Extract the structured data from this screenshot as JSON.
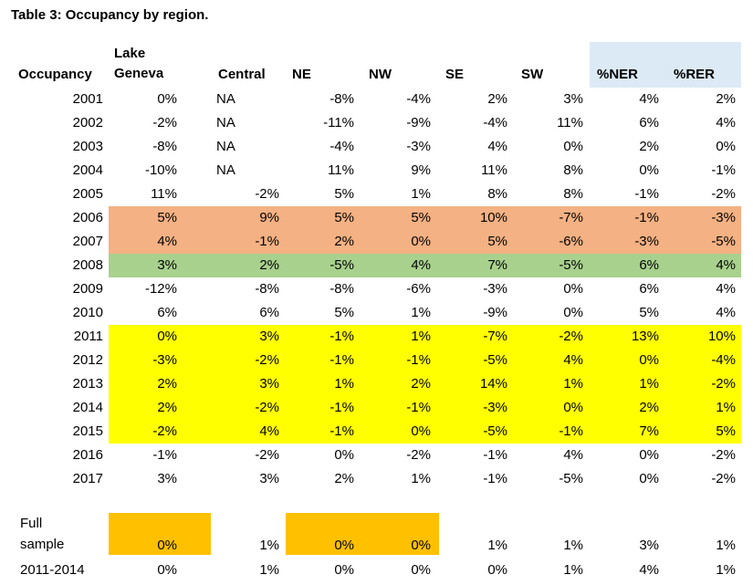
{
  "title": "Table 3: Occupancy by region.",
  "header": {
    "occupancy": "Occupancy",
    "lake_geneva_line1": "Lake",
    "lake_geneva_line2": "Geneva",
    "central": "Central",
    "ne": "NE",
    "nw": "NW",
    "se": "SE",
    "sw": "SW",
    "ner": "%NER",
    "rer": "%RER"
  },
  "colors": {
    "header_highlight": "#dceaf6",
    "salmon": "#f4b183",
    "green": "#a9d18e",
    "yellow": "#ffff00",
    "orange": "#ffc000"
  },
  "rows": [
    {
      "year": "2001",
      "values": [
        "0%",
        "NA",
        "-8%",
        "-4%",
        "2%",
        "3%",
        "4%",
        "2%"
      ],
      "highlight": ""
    },
    {
      "year": "2002",
      "values": [
        "-2%",
        "NA",
        "-11%",
        "-9%",
        "-4%",
        "11%",
        "6%",
        "4%"
      ],
      "highlight": ""
    },
    {
      "year": "2003",
      "values": [
        "-8%",
        "NA",
        "-4%",
        "-3%",
        "4%",
        "0%",
        "2%",
        "0%"
      ],
      "highlight": ""
    },
    {
      "year": "2004",
      "values": [
        "-10%",
        "NA",
        "11%",
        "9%",
        "11%",
        "8%",
        "0%",
        "-1%"
      ],
      "highlight": ""
    },
    {
      "year": "2005",
      "values": [
        "11%",
        "-2%",
        "5%",
        "1%",
        "8%",
        "8%",
        "-1%",
        "-2%"
      ],
      "highlight": ""
    },
    {
      "year": "2006",
      "values": [
        "5%",
        "9%",
        "5%",
        "5%",
        "10%",
        "-7%",
        "-1%",
        "-3%"
      ],
      "highlight": "salmon"
    },
    {
      "year": "2007",
      "values": [
        "4%",
        "-1%",
        "2%",
        "0%",
        "5%",
        "-6%",
        "-3%",
        "-5%"
      ],
      "highlight": "salmon"
    },
    {
      "year": "2008",
      "values": [
        "3%",
        "2%",
        "-5%",
        "4%",
        "7%",
        "-5%",
        "6%",
        "4%"
      ],
      "highlight": "green"
    },
    {
      "year": "2009",
      "values": [
        "-12%",
        "-8%",
        "-8%",
        "-6%",
        "-3%",
        "0%",
        "6%",
        "4%"
      ],
      "highlight": ""
    },
    {
      "year": "2010",
      "values": [
        "6%",
        "6%",
        "5%",
        "1%",
        "-9%",
        "0%",
        "5%",
        "4%"
      ],
      "highlight": ""
    },
    {
      "year": "2011",
      "values": [
        "0%",
        "3%",
        "-1%",
        "1%",
        "-7%",
        "-2%",
        "13%",
        "10%"
      ],
      "highlight": "yellow"
    },
    {
      "year": "2012",
      "values": [
        "-3%",
        "-2%",
        "-1%",
        "-1%",
        "-5%",
        "4%",
        "0%",
        "-4%"
      ],
      "highlight": "yellow"
    },
    {
      "year": "2013",
      "values": [
        "2%",
        "3%",
        "1%",
        "2%",
        "14%",
        "1%",
        "1%",
        "-2%"
      ],
      "highlight": "yellow"
    },
    {
      "year": "2014",
      "values": [
        "2%",
        "-2%",
        "-1%",
        "-1%",
        "-3%",
        "0%",
        "2%",
        "1%"
      ],
      "highlight": "yellow"
    },
    {
      "year": "2015",
      "values": [
        "-2%",
        "4%",
        "-1%",
        "0%",
        "-5%",
        "-1%",
        "7%",
        "5%"
      ],
      "highlight": "yellow"
    },
    {
      "year": "2016",
      "values": [
        "-1%",
        "-2%",
        "0%",
        "-2%",
        "-1%",
        "4%",
        "0%",
        "-2%"
      ],
      "highlight": ""
    },
    {
      "year": "2017",
      "values": [
        "3%",
        "3%",
        "2%",
        "1%",
        "-1%",
        "-5%",
        "0%",
        "-2%"
      ],
      "highlight": ""
    }
  ],
  "full_sample": {
    "label_line1": "Full",
    "label_line2": "sample",
    "values": [
      "0%",
      "1%",
      "0%",
      "0%",
      "1%",
      "1%",
      "3%",
      "1%"
    ],
    "highlight_columns": [
      0,
      2,
      3
    ]
  },
  "sub_sample": {
    "label": "2011-2014",
    "values": [
      "0%",
      "1%",
      "0%",
      "0%",
      "0%",
      "1%",
      "4%",
      "1%"
    ]
  }
}
